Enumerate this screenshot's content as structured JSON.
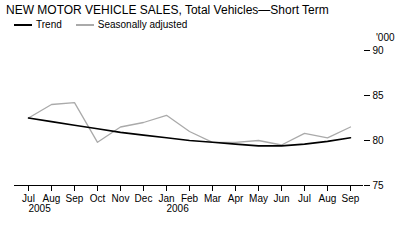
{
  "chart_data": {
    "type": "line",
    "title": "NEW MOTOR VEHICLE SALES, Total Vehicles—Short Term",
    "ylabel": "'000",
    "categories": [
      "Jul",
      "Aug",
      "Sep",
      "Oct",
      "Nov",
      "Dec",
      "Jan",
      "Feb",
      "Mar",
      "Apr",
      "May",
      "Jun",
      "Jul",
      "Aug",
      "Sep"
    ],
    "series": [
      {
        "name": "Seasonally adjusted",
        "color": "#aaaaaa",
        "values": [
          82.5,
          84.0,
          84.2,
          79.8,
          81.5,
          82.0,
          82.8,
          81.0,
          79.8,
          79.8,
          80.0,
          79.5,
          80.8,
          80.3,
          81.5
        ]
      },
      {
        "name": "Trend",
        "color": "#000000",
        "values": [
          82.5,
          82.1,
          81.7,
          81.3,
          80.9,
          80.6,
          80.3,
          80.0,
          79.8,
          79.6,
          79.4,
          79.4,
          79.6,
          79.9,
          80.3
        ]
      }
    ],
    "annotations": [
      {
        "x": 0,
        "text": "2005"
      },
      {
        "x": 6,
        "text": "2006"
      }
    ],
    "ylim": [
      75,
      90
    ],
    "yticks": [
      75,
      80,
      85,
      90
    ],
    "grid": false,
    "legend": "upper left"
  }
}
